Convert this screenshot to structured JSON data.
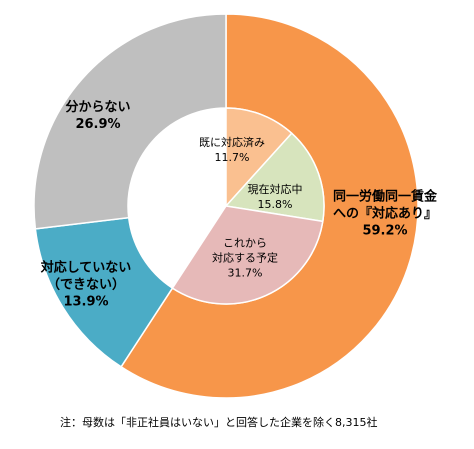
{
  "chart_data": {
    "type": "pie",
    "outer": [
      {
        "label_lines": [
          "同一労働同一賃金",
          "への『対応あり』"
        ],
        "value": 59.2,
        "value_text": "59.2%",
        "color": "#f7964a"
      },
      {
        "label_lines": [
          "対応していない",
          "（できない）"
        ],
        "value": 13.9,
        "value_text": "13.9%",
        "color": "#4bacc6"
      },
      {
        "label_lines": [
          "分からない"
        ],
        "value": 26.9,
        "value_text": "26.9%",
        "color": "#bfbfbf"
      }
    ],
    "inner": [
      {
        "label_lines": [
          "既に対応済み"
        ],
        "value": 11.7,
        "value_text": "11.7%",
        "color": "#fac090"
      },
      {
        "label_lines": [
          "現在対応中"
        ],
        "value": 15.8,
        "value_text": "15.8%",
        "color": "#d7e4bd"
      },
      {
        "label_lines": [
          "これから",
          "対応する予定"
        ],
        "value": 31.7,
        "value_text": "31.7%",
        "color": "#e6b9b8"
      }
    ]
  },
  "footnote": "注：母数は「非正社員はいない」と回答した企業を除く8,315社"
}
